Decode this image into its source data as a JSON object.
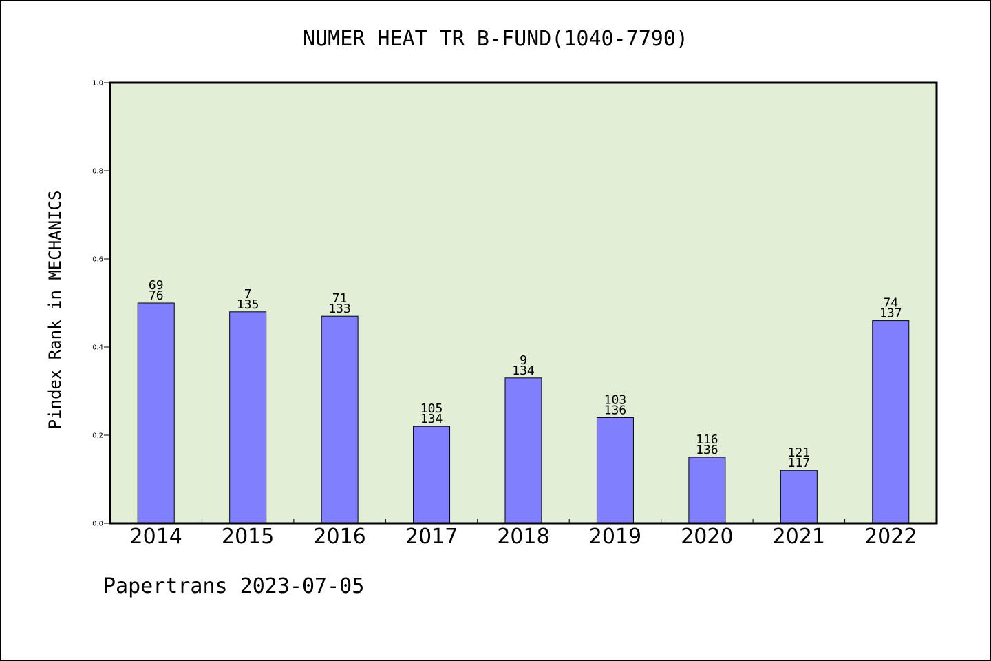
{
  "chart_data": {
    "type": "bar",
    "title": "NUMER HEAT TR B-FUND(1040-7790)",
    "xlabel": "",
    "ylabel": "Pindex Rank in MECHANICS",
    "categories": [
      "2014",
      "2015",
      "2016",
      "2017",
      "2018",
      "2019",
      "2020",
      "2021",
      "2022"
    ],
    "values": [
      0.5,
      0.48,
      0.47,
      0.22,
      0.33,
      0.24,
      0.15,
      0.12,
      0.46
    ],
    "label_top": [
      "69",
      "7",
      "71",
      "105",
      "9",
      "103",
      "116",
      "121",
      "74"
    ],
    "label_bottom": [
      "76",
      "135",
      "133",
      "134",
      "134",
      "136",
      "136",
      "117",
      "137"
    ],
    "ylim": [
      0,
      1.0
    ],
    "yticks": [
      "0.0",
      "0.2",
      "0.4",
      "0.6",
      "0.8",
      "1.0"
    ],
    "grid": false,
    "legend": "none",
    "colors": {
      "plot_background": "#e2efd6",
      "bar_fill": "#8080ff",
      "bar_stroke": "#000000"
    }
  },
  "footer": {
    "text": "Papertrans 2023-07-05"
  }
}
